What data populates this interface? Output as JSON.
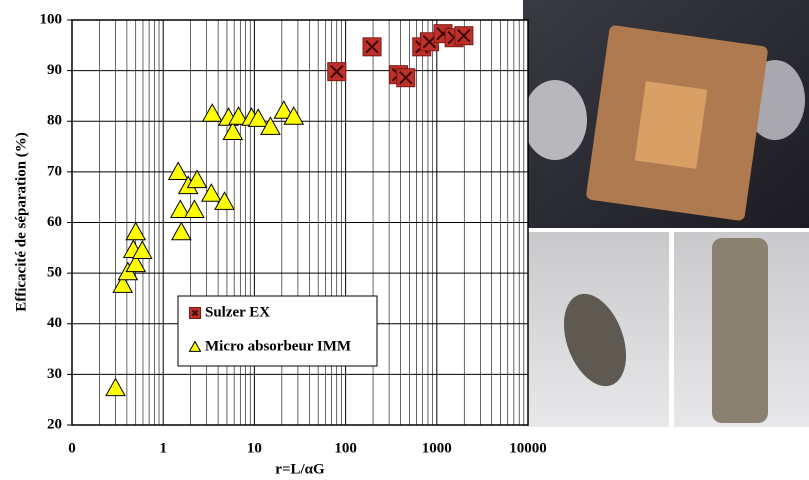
{
  "chart_data": {
    "type": "scatter",
    "xlabel": "r=L/αG",
    "ylabel": "Efficacité  de séparation (%)",
    "xscale": "log",
    "xlim": [
      0.1,
      10000
    ],
    "xticks": [
      {
        "value": 0.1,
        "label": "0"
      },
      1,
      10,
      100,
      1000,
      10000
    ],
    "ylim": [
      20,
      100
    ],
    "yticks": [
      20,
      30,
      40,
      50,
      60,
      70,
      80,
      90,
      100
    ],
    "grid": true,
    "minor_grid": true,
    "legend": "lower center",
    "series": [
      {
        "name": "Sulzer EX",
        "color": "#c0302a",
        "marker": "square",
        "x": [
          80,
          195,
          380,
          457,
          684,
          830,
          1170,
          1550,
          1980
        ],
        "values": [
          89.8,
          94.7,
          89.2,
          88.6,
          94.7,
          95.7,
          97.3,
          96.5,
          96.9
        ]
      },
      {
        "name": "Micro absorbeur IMM",
        "color": "#ffff00",
        "marker": "triangle",
        "x": [
          0.3,
          0.36,
          0.41,
          0.47,
          0.5,
          0.5,
          0.59,
          1.46,
          1.54,
          1.58,
          1.88,
          2.2,
          2.35,
          3.37,
          3.45,
          4.7,
          5.2,
          5.8,
          6.7,
          9.3,
          11,
          15,
          21,
          27
        ],
        "values": [
          27.3,
          47.7,
          50.2,
          54.6,
          51.8,
          58.1,
          54.4,
          70,
          62.5,
          58.1,
          67.2,
          62.5,
          68.4,
          65.7,
          81.5,
          64.1,
          80.7,
          77.9,
          80.9,
          80.7,
          80.5,
          78.9,
          82.1,
          80.9
        ]
      }
    ]
  }
}
